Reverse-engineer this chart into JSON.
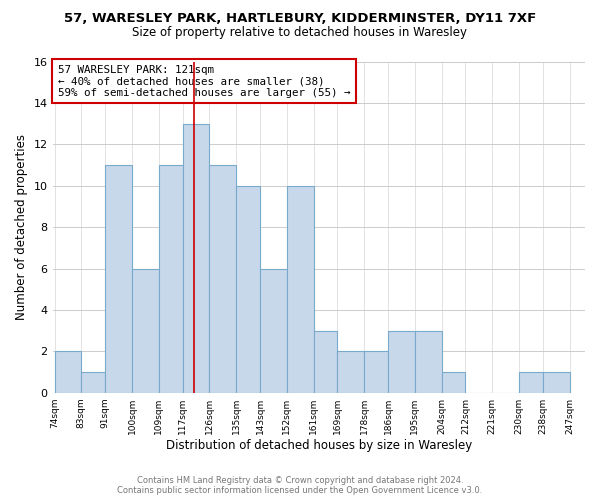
{
  "title_line1": "57, WARESLEY PARK, HARTLEBURY, KIDDERMINSTER, DY11 7XF",
  "title_line2": "Size of property relative to detached houses in Waresley",
  "xlabel": "Distribution of detached houses by size in Waresley",
  "ylabel": "Number of detached properties",
  "bar_edges": [
    74,
    83,
    91,
    100,
    109,
    117,
    126,
    135,
    143,
    152,
    161,
    169,
    178,
    186,
    195,
    204,
    212,
    221,
    230,
    238,
    247
  ],
  "bar_heights": [
    2,
    1,
    11,
    6,
    11,
    13,
    11,
    10,
    6,
    10,
    3,
    2,
    2,
    3,
    3,
    1,
    0,
    0,
    1,
    1
  ],
  "bar_color": "#c8d8eb",
  "bar_edgecolor": "#7aaacb",
  "property_value": 121,
  "property_line_color": "#cc0000",
  "annotation_box_edgecolor": "#cc0000",
  "annotation_text_line1": "57 WARESLEY PARK: 121sqm",
  "annotation_text_line2": "← 40% of detached houses are smaller (38)",
  "annotation_text_line3": "59% of semi-detached houses are larger (55) →",
  "ylim": [
    0,
    16
  ],
  "yticks": [
    0,
    2,
    4,
    6,
    8,
    10,
    12,
    14,
    16
  ],
  "tick_labels": [
    "74sqm",
    "83sqm",
    "91sqm",
    "100sqm",
    "109sqm",
    "117sqm",
    "126sqm",
    "135sqm",
    "143sqm",
    "152sqm",
    "161sqm",
    "169sqm",
    "178sqm",
    "186sqm",
    "195sqm",
    "204sqm",
    "212sqm",
    "221sqm",
    "230sqm",
    "238sqm",
    "247sqm"
  ],
  "footer_line1": "Contains HM Land Registry data © Crown copyright and database right 2024.",
  "footer_line2": "Contains public sector information licensed under the Open Government Licence v3.0.",
  "background_color": "#ffffff",
  "grid_color": "#cccccc",
  "figwidth": 6.0,
  "figheight": 5.0,
  "dpi": 100
}
